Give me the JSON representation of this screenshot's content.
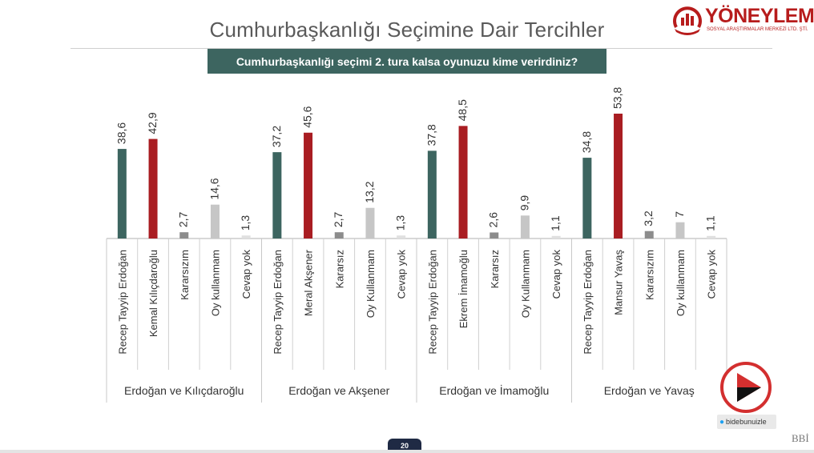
{
  "header": {
    "title": "Cumhurbaşkanlığı Seçimine Dair Tercihler",
    "question": "Cumhurbaşkanlığı seçimi 2. tura kalsa oyunuzu kime verirdiniz?"
  },
  "logo": {
    "name": "YÖNEYLEM",
    "subtitle": "SOSYAL ARAŞTIRMALAR MERKEZİ LTD. ŞTİ."
  },
  "footer": {
    "page_number": "20",
    "handle": "bidebunuizle",
    "corner_mark": "BBİ"
  },
  "colors": {
    "candidate_green": "#3d6560",
    "candidate_red": "#a91d22",
    "undecided_gray": "#8c8c8c",
    "novote_gray": "#c6c6c6",
    "noanswer_gray": "#e0e0e0",
    "title_bar": "#3d6560"
  },
  "chart_data": {
    "type": "bar",
    "groups": [
      {
        "name": "Erdoğan ve Kılıçdaroğlu",
        "categories": [
          "Recep Tayyip Erdoğan",
          "Kemal Kılıçdaroğlu",
          "Kararsızım",
          "Oy kullanmam",
          "Cevap yok"
        ],
        "values": [
          38.6,
          42.9,
          2.7,
          14.6,
          1.3
        ],
        "labels": [
          "38,6",
          "42,9",
          "2,7",
          "14,6",
          "1,3"
        ]
      },
      {
        "name": "Erdoğan ve Akşener",
        "categories": [
          "Recep Tayyip Erdoğan",
          "Meral Akşener",
          "Kararsız",
          "Oy Kullanmam",
          "Cevap yok"
        ],
        "values": [
          37.2,
          45.6,
          2.7,
          13.2,
          1.3
        ],
        "labels": [
          "37,2",
          "45,6",
          "2,7",
          "13,2",
          "1,3"
        ]
      },
      {
        "name": "Erdoğan ve İmamoğlu",
        "categories": [
          "Recep Tayyip Erdoğan",
          "Ekrem İmamoğlu",
          "Kararsız",
          "Oy Kullanmam",
          "Cevap yok"
        ],
        "values": [
          37.8,
          48.5,
          2.6,
          9.9,
          1.1
        ],
        "labels": [
          "37,8",
          "48,5",
          "2,6",
          "9,9",
          "1,1"
        ]
      },
      {
        "name": "Erdoğan ve Yavaş",
        "categories": [
          "Recep Tayyip Erdoğan",
          "Mansur Yavaş",
          "Kararsızım",
          "Oy kullanmam",
          "Cevap yok"
        ],
        "values": [
          34.8,
          53.8,
          3.2,
          7,
          1.1
        ],
        "labels": [
          "34,8",
          "53,8",
          "3,2",
          "7",
          "1,1"
        ]
      }
    ],
    "ylim": [
      0,
      53.8
    ],
    "grid": false,
    "legend": "none"
  }
}
